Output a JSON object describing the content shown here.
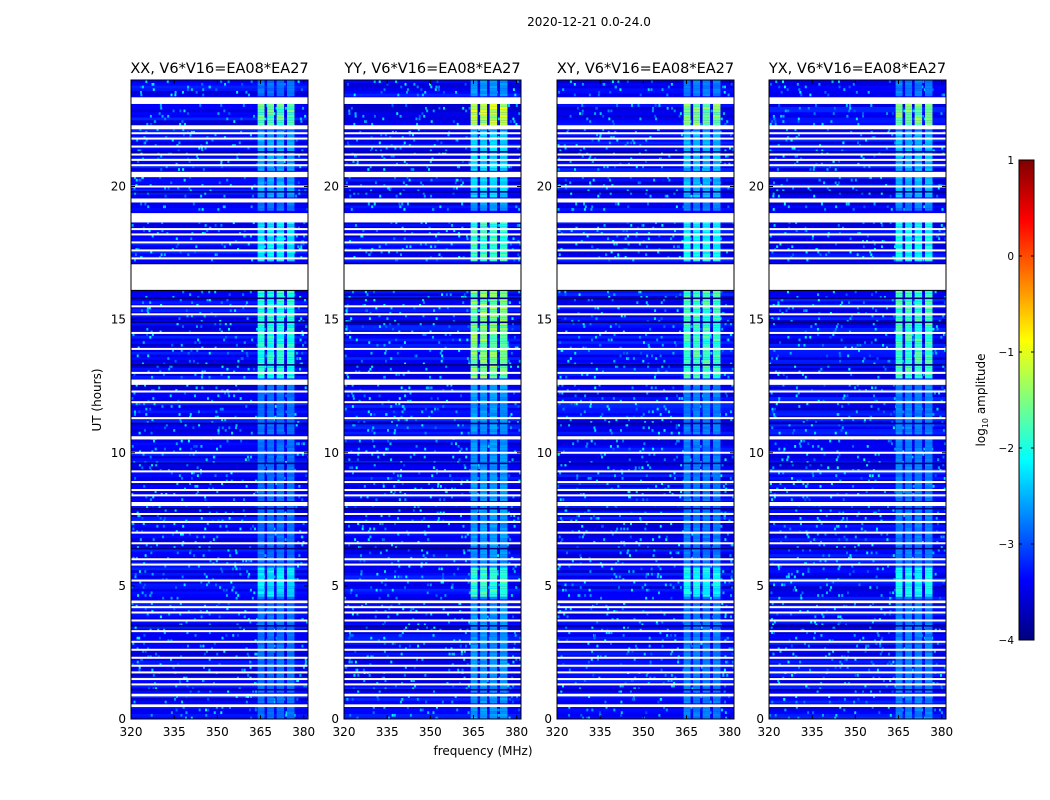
{
  "figure": {
    "suptitle": "2020-12-21 0.0-24.0",
    "ylabel": "UT (hours)",
    "xlabel": "frequency (MHz)"
  },
  "colorbar": {
    "label_prefix": "log",
    "label_sub": "10",
    "label_suffix": " amplitude",
    "range": [
      -4,
      1
    ],
    "ticks": [
      1,
      0,
      -1,
      -2,
      -3,
      -4
    ],
    "tick_labels": [
      "1",
      "0",
      "−1",
      "−2",
      "−3",
      "−4"
    ],
    "colormap": [
      "#00007f",
      "#0000ff",
      "#007fff",
      "#00ffff",
      "#7fff7f",
      "#ffff00",
      "#ff7f00",
      "#ff0000",
      "#7f0000"
    ]
  },
  "chart_data": [
    {
      "type": "heatmap",
      "title": "XX, V6*V16=EA08*EA27",
      "pol": "XX",
      "xlabel": "",
      "ylabel": "UT (hours)",
      "xlim": [
        320,
        381.5
      ],
      "ylim": [
        0,
        24
      ],
      "xticks": [
        320,
        335,
        350,
        365,
        380
      ],
      "xtick_labels": [
        "320",
        "335",
        "350",
        "365",
        "380"
      ],
      "yticks": [
        0,
        5,
        10,
        15,
        20
      ],
      "ytick_labels": [
        "0",
        "5",
        "10",
        "15",
        "20"
      ],
      "value_label": "log10 amplitude",
      "background_value": -3.4,
      "rfi_band_mhz": [
        359,
        377
      ],
      "rfi_peak_value": -1.5
    },
    {
      "type": "heatmap",
      "title": "YY, V6*V16=EA08*EA27",
      "pol": "YY",
      "xlabel": "frequency (MHz)",
      "ylabel": "",
      "xlim": [
        320,
        381.5
      ],
      "ylim": [
        0,
        24
      ],
      "xticks": [
        320,
        335,
        350,
        365,
        380
      ],
      "xtick_labels": [
        "320",
        "335",
        "350",
        "365",
        "380"
      ],
      "yticks": [
        0,
        5,
        10,
        15,
        20
      ],
      "ytick_labels": [
        "0",
        "5",
        "10",
        "15",
        "20"
      ],
      "value_label": "log10 amplitude",
      "background_value": -3.4,
      "rfi_band_mhz": [
        359,
        377
      ],
      "rfi_peak_value": -0.9
    },
    {
      "type": "heatmap",
      "title": "XY, V6*V16=EA08*EA27",
      "pol": "XY",
      "xlabel": "",
      "ylabel": "",
      "xlim": [
        320,
        381.5
      ],
      "ylim": [
        0,
        24
      ],
      "xticks": [
        320,
        335,
        350,
        365,
        380
      ],
      "xtick_labels": [
        "320",
        "335",
        "350",
        "365",
        "380"
      ],
      "yticks": [
        0,
        5,
        10,
        15,
        20
      ],
      "ytick_labels": [
        "0",
        "5",
        "10",
        "15",
        "20"
      ],
      "value_label": "log10 amplitude",
      "background_value": -3.4,
      "rfi_band_mhz": [
        359,
        377
      ],
      "rfi_peak_value": -1.3
    },
    {
      "type": "heatmap",
      "title": "YX, V6*V16=EA08*EA27",
      "pol": "YX",
      "xlabel": "",
      "ylabel": "",
      "xlim": [
        320,
        381.5
      ],
      "ylim": [
        0,
        24
      ],
      "xticks": [
        320,
        335,
        350,
        365,
        380
      ],
      "xtick_labels": [
        "320",
        "335",
        "350",
        "365",
        "380"
      ],
      "yticks": [
        0,
        5,
        10,
        15,
        20
      ],
      "ytick_labels": [
        "0",
        "5",
        "10",
        "15",
        "20"
      ],
      "value_label": "log10 amplitude",
      "background_value": -3.4,
      "rfi_band_mhz": [
        359,
        377
      ],
      "rfi_peak_value": -1.3
    }
  ]
}
